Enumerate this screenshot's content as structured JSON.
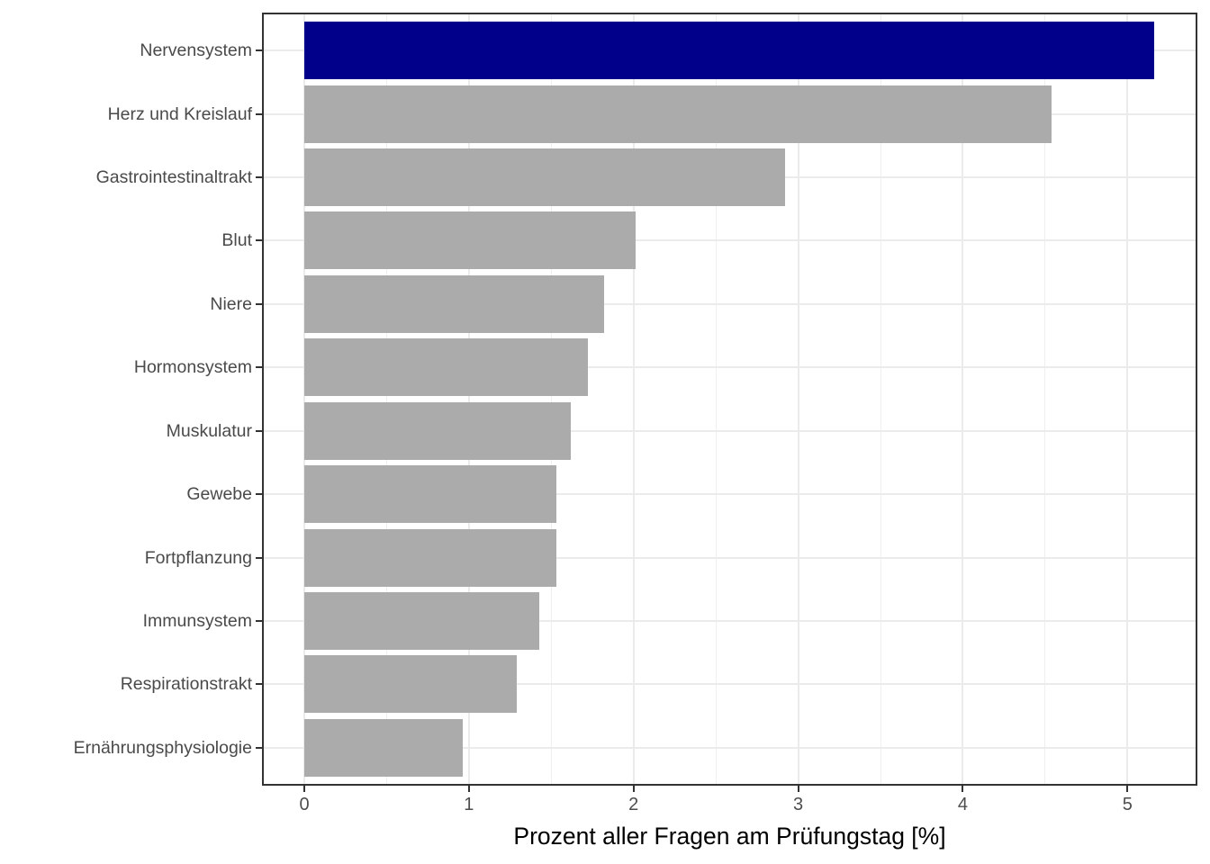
{
  "chart_data": {
    "type": "bar",
    "orientation": "horizontal",
    "title": "",
    "xlabel": "Prozent aller Fragen am Prüfungstag [%]",
    "ylabel": "",
    "categories": [
      "Nervensystem",
      "Herz und Kreislauf",
      "Gastrointestinaltrakt",
      "Blut",
      "Niere",
      "Hormonsystem",
      "Muskulatur",
      "Gewebe",
      "Fortpflanzung",
      "Immunsystem",
      "Respirationstrakt",
      "Ernährungsphysiologie"
    ],
    "values": [
      5.16,
      4.54,
      2.92,
      2.01,
      1.82,
      1.72,
      1.62,
      1.53,
      1.53,
      1.43,
      1.29,
      0.96
    ],
    "highlight_category": "Nervensystem",
    "highlight_index": 0,
    "x_ticks": [
      0,
      1,
      2,
      3,
      4,
      5
    ],
    "x_minor_ticks": [
      0.5,
      1.5,
      2.5,
      3.5,
      4.5
    ],
    "xlim": [
      -0.26,
      5.43
    ],
    "grid": true,
    "legend_position": "none",
    "colors": {
      "bar_default": "#ababab",
      "bar_highlight": "#00008b",
      "gridline_major": "#ebebeb",
      "gridline_minor": "#efefef",
      "panel_border": "#333333",
      "axis_text": "#4d4d4d",
      "axis_title": "#000000",
      "background": "#ffffff"
    }
  }
}
